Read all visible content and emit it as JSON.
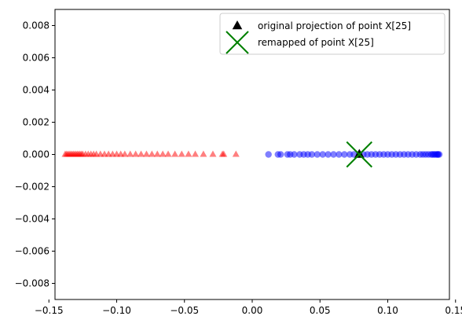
{
  "chart_data": {
    "type": "scatter",
    "title": "",
    "xlabel": "",
    "ylabel": "",
    "xlim": [
      -0.1455,
      0.1455
    ],
    "ylim": [
      -0.009,
      0.009
    ],
    "x_ticks": [
      -0.15,
      -0.1,
      -0.05,
      0.0,
      0.05,
      0.1,
      0.15
    ],
    "x_tick_labels": [
      "−0.15",
      "−0.10",
      "−0.05",
      "0.00",
      "0.05",
      "0.10",
      "0.15"
    ],
    "y_ticks": [
      -0.008,
      -0.006,
      -0.004,
      -0.002,
      0.0,
      0.002,
      0.004,
      0.006,
      0.008
    ],
    "y_tick_labels": [
      "−0.008",
      "−0.006",
      "−0.004",
      "−0.002",
      "0.000",
      "0.002",
      "0.004",
      "0.006",
      "0.008"
    ],
    "grid": false,
    "legend_position": "top-right",
    "series": [
      {
        "marker": "triangle",
        "color": "#ff0000",
        "alpha": 0.5,
        "x": [
          -0.138,
          -0.137,
          -0.136,
          -0.135,
          -0.134,
          -0.133,
          -0.132,
          -0.131,
          -0.13,
          -0.129,
          -0.128,
          -0.127,
          -0.126,
          -0.125,
          -0.123,
          -0.121,
          -0.119,
          -0.117,
          -0.115,
          -0.112,
          -0.109,
          -0.106,
          -0.103,
          -0.1,
          -0.097,
          -0.094,
          -0.09,
          -0.086,
          -0.082,
          -0.078,
          -0.074,
          -0.07,
          -0.066,
          -0.062,
          -0.057,
          -0.052,
          -0.047,
          -0.042,
          -0.036,
          -0.029,
          -0.022,
          -0.021,
          -0.012
        ],
        "y": [
          0,
          0,
          0,
          0,
          0,
          0,
          0,
          0,
          0,
          0,
          0,
          0,
          0,
          0,
          0,
          0,
          0,
          0,
          0,
          0,
          0,
          0,
          0,
          0,
          0,
          0,
          0,
          0,
          0,
          0,
          0,
          0,
          0,
          0,
          0,
          0,
          0,
          0,
          0,
          0,
          0,
          0,
          0
        ]
      },
      {
        "marker": "circle",
        "color": "#0000ff",
        "alpha": 0.5,
        "x": [
          0.012,
          0.019,
          0.021,
          0.026,
          0.028,
          0.031,
          0.035,
          0.038,
          0.041,
          0.044,
          0.048,
          0.052,
          0.056,
          0.06,
          0.064,
          0.068,
          0.072,
          0.075,
          0.079,
          0.082,
          0.085,
          0.088,
          0.091,
          0.094,
          0.097,
          0.1,
          0.103,
          0.106,
          0.109,
          0.112,
          0.115,
          0.118,
          0.121,
          0.124,
          0.126,
          0.128,
          0.13,
          0.132,
          0.133,
          0.134,
          0.135,
          0.136,
          0.137,
          0.137,
          0.138
        ],
        "y": [
          0,
          0,
          0,
          0,
          0,
          0,
          0,
          0,
          0,
          0,
          0,
          0,
          0,
          0,
          0,
          0,
          0,
          0,
          0,
          0,
          0,
          0,
          0,
          0,
          0,
          0,
          0,
          0,
          0,
          0,
          0,
          0,
          0,
          0,
          0,
          0,
          0,
          0,
          0,
          0,
          0,
          0,
          0,
          0,
          0
        ]
      },
      {
        "name": "original projection of point X[25]",
        "marker": "triangle",
        "color": "#000000",
        "x": [
          0.079
        ],
        "y": [
          0.0
        ]
      },
      {
        "name": "remapped of point X[25]",
        "marker": "x",
        "color": "#008000",
        "x": [
          0.079
        ],
        "y": [
          0.0
        ]
      }
    ]
  }
}
